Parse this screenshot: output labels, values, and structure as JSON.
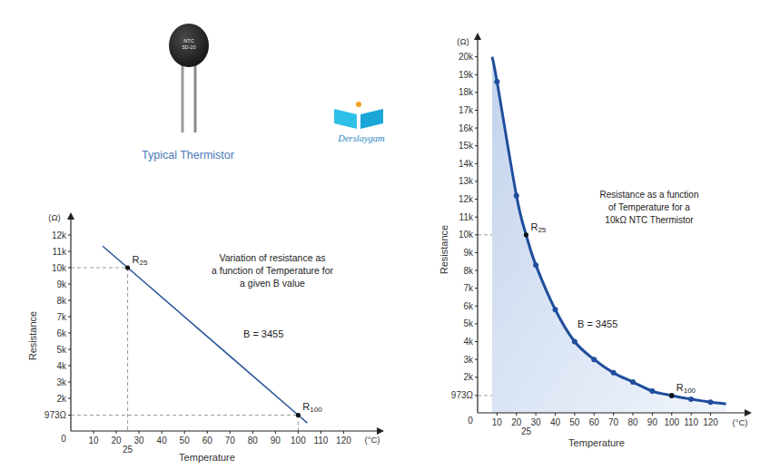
{
  "header": {
    "photo_label": [
      "NTC",
      "5D-20"
    ],
    "photo_caption": "Typical Thermistor",
    "logo_text": "Derslaygam"
  },
  "chart_data": [
    {
      "type": "line",
      "note": [
        "Variation of resistance as",
        "a function of Temperature for",
        "a given B value"
      ],
      "annotation": "B = 3455",
      "x_label": "Temperature",
      "x_unit": "(°C)",
      "y_label": "Resistance",
      "y_unit": "(Ω)",
      "xlim": [
        0,
        135
      ],
      "xticks": [
        0,
        10,
        20,
        30,
        40,
        50,
        60,
        70,
        80,
        90,
        100,
        110,
        120
      ],
      "ylim": [
        0,
        13000
      ],
      "yticks": [
        {
          "value": 973,
          "label": "973Ω"
        },
        {
          "value": 2000,
          "label": "2k"
        },
        {
          "value": 3000,
          "label": "3k"
        },
        {
          "value": 4000,
          "label": "4k"
        },
        {
          "value": 5000,
          "label": "5k"
        },
        {
          "value": 6000,
          "label": "6k"
        },
        {
          "value": 7000,
          "label": "7k"
        },
        {
          "value": 8000,
          "label": "8k"
        },
        {
          "value": 9000,
          "label": "9k"
        },
        {
          "value": 10000,
          "label": "10k"
        },
        {
          "value": 11000,
          "label": "11k"
        },
        {
          "value": 12000,
          "label": "12k"
        }
      ],
      "grid": false,
      "series": [
        {
          "type": "line",
          "color": "#2b5797",
          "x": [
            14,
            25,
            100,
            104
          ],
          "values": [
            11320,
            10000,
            973,
            493
          ]
        }
      ],
      "points": [
        {
          "label": "R25",
          "x": 25,
          "y": 10000,
          "x_label": "25"
        },
        {
          "label": "R100",
          "x": 100,
          "y": 973
        }
      ]
    },
    {
      "type": "area",
      "note": [
        "Resistance as a function",
        "of Temperature for a",
        "10kΩ NTC Thermistor"
      ],
      "annotation": "B = 3455",
      "x_label": "Temperature",
      "x_unit": "(°C)",
      "y_label": "Resistance",
      "y_unit": "(Ω)",
      "xlim": [
        0,
        138
      ],
      "xticks": [
        0,
        10,
        20,
        30,
        40,
        50,
        60,
        70,
        80,
        90,
        100,
        110,
        120
      ],
      "ylim": [
        0,
        21000
      ],
      "yticks": [
        {
          "value": 973,
          "label": "973Ω"
        },
        {
          "value": 2000,
          "label": "2k"
        },
        {
          "value": 3000,
          "label": "3k"
        },
        {
          "value": 4000,
          "label": "4k"
        },
        {
          "value": 5000,
          "label": "5k"
        },
        {
          "value": 6000,
          "label": "6k"
        },
        {
          "value": 7000,
          "label": "7k"
        },
        {
          "value": 8000,
          "label": "8k"
        },
        {
          "value": 9000,
          "label": "9k"
        },
        {
          "value": 10000,
          "label": "10k"
        },
        {
          "value": 11000,
          "label": "11k"
        },
        {
          "value": 12000,
          "label": "12k"
        },
        {
          "value": 13000,
          "label": "13k"
        },
        {
          "value": 14000,
          "label": "14k"
        },
        {
          "value": 15000,
          "label": "15k"
        },
        {
          "value": 16000,
          "label": "16k"
        },
        {
          "value": 17000,
          "label": "17k"
        },
        {
          "value": 18000,
          "label": "18k"
        },
        {
          "value": 19000,
          "label": "19k"
        },
        {
          "value": 20000,
          "label": "20k"
        }
      ],
      "grid": false,
      "series": [
        {
          "type": "area",
          "color": "#1f4e9c",
          "x": [
            7.5,
            10,
            20,
            25,
            30,
            40,
            50,
            60,
            70,
            80,
            90,
            100,
            110,
            120,
            128
          ],
          "values": [
            20000,
            18600,
            12200,
            10000,
            8300,
            5800,
            4000,
            3000,
            2250,
            1730,
            1220,
            973,
            770,
            600,
            510
          ]
        },
        {
          "type": "scatter",
          "color": "#1f4e9c",
          "marker": "circle",
          "x": [
            10,
            20,
            30,
            40,
            50,
            60,
            70,
            80,
            90,
            100,
            110,
            120
          ],
          "values": [
            18600,
            12200,
            8300,
            5800,
            4000,
            3000,
            2250,
            1730,
            1220,
            973,
            770,
            600
          ]
        }
      ],
      "points": [
        {
          "label": "R25",
          "x": 25,
          "y": 10000,
          "x_label": "25"
        },
        {
          "label": "R100",
          "x": 100,
          "y": 973
        }
      ]
    }
  ]
}
